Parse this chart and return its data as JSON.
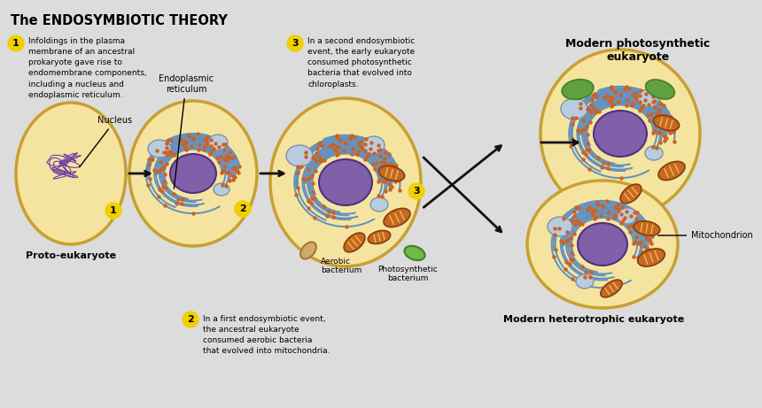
{
  "title": "The ENDOSYMBIOTIC THEORY",
  "bg": "#dcdcdc",
  "cell_fill": "#f5e8a0",
  "cell_edge": "#c8a030",
  "nucleus_fill": "#8060a8",
  "nucleus_edge": "#6040888",
  "er_blue": "#6090c0",
  "er_red": "#c04030",
  "mito_fill": "#c86820",
  "mito_edge": "#804010",
  "chloro_fill": "#60a040",
  "chloro_edge": "#408020",
  "vacuole_fill": "#b8cce0",
  "vacuole_edge": "#8090a8",
  "step_yellow": "#f0d000",
  "proto_nucleus_fill": "#b090c8",
  "aerobic_fill": "#d4a868",
  "aerobic_edge": "#a07830",
  "arrow_color": "#111111",
  "text_color": "#111111",
  "label1": "Infoldings in the plasma\nmembrane of an ancestral\nprokaryote gave rise to\nendomembrane components,\nincluding a nucleus and\nendoplasmic reticulum.",
  "label2": "In a first endosymbiotic event,\nthe ancestral eukaryote\nconsumed aerobic bacteria\nthat evolved into mitochondria.",
  "label3": "In a second endosymbiotic\nevent, the early eukaryote\nconsumed photosynthetic\nbacteria that evolved into\nchloroplasts."
}
